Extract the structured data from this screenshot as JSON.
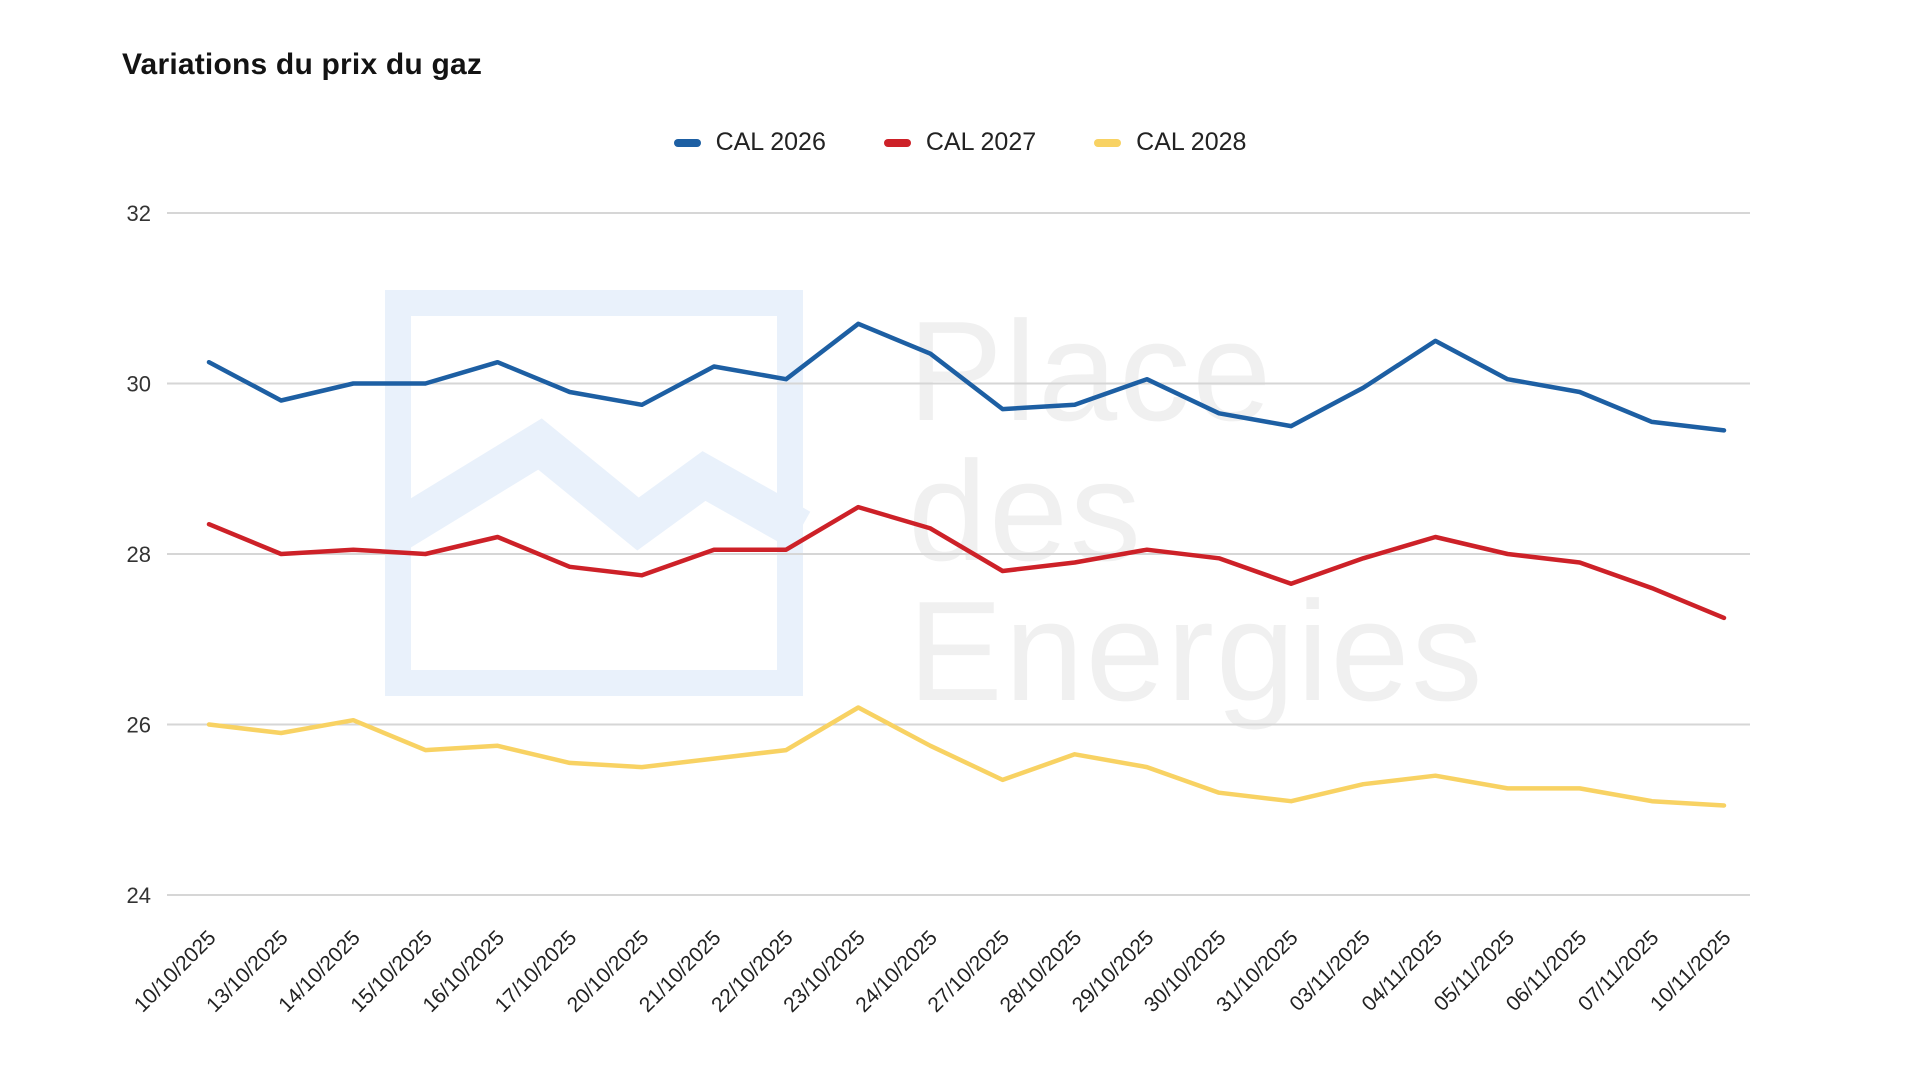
{
  "title": "Variations du prix du gaz",
  "colors": {
    "grid": "#d6d6d6",
    "axis_text": "#333333",
    "watermark_blue": "#e9f1fb",
    "watermark_gray": "#f0f0f0",
    "background": "#ffffff"
  },
  "watermark": {
    "lines": [
      "Place",
      "des",
      "Energies"
    ],
    "logo": "zigzag-line-in-square-icon"
  },
  "chart_data": {
    "type": "line",
    "title": "Variations du prix du gaz",
    "xlabel": "",
    "ylabel": "",
    "ylim": [
      24,
      32
    ],
    "yticks": [
      32,
      30,
      28,
      26,
      24
    ],
    "grid": true,
    "legend_position": "top",
    "x": [
      "10/10/2025",
      "13/10/2025",
      "14/10/2025",
      "15/10/2025",
      "16/10/2025",
      "17/10/2025",
      "20/10/2025",
      "21/10/2025",
      "22/10/2025",
      "23/10/2025",
      "24/10/2025",
      "27/10/2025",
      "28/10/2025",
      "29/10/2025",
      "30/10/2025",
      "31/10/2025",
      "03/11/2025",
      "04/11/2025",
      "05/11/2025",
      "06/11/2025",
      "07/11/2025",
      "10/11/2025"
    ],
    "series": [
      {
        "name": "CAL 2026",
        "color": "#1d5fa3",
        "values": [
          30.25,
          29.8,
          30.0,
          30.0,
          30.25,
          29.9,
          29.75,
          30.2,
          30.05,
          30.7,
          30.35,
          29.7,
          29.75,
          30.05,
          29.65,
          29.5,
          29.95,
          30.5,
          30.05,
          29.9,
          29.55,
          29.45
        ]
      },
      {
        "name": "CAL 2027",
        "color": "#cd2128",
        "values": [
          28.35,
          28.0,
          28.05,
          28.0,
          28.2,
          27.85,
          27.75,
          28.05,
          28.05,
          28.55,
          28.3,
          27.8,
          27.9,
          28.05,
          27.95,
          27.65,
          27.95,
          28.2,
          28.0,
          27.9,
          27.6,
          27.25
        ]
      },
      {
        "name": "CAL 2028",
        "color": "#f8d263",
        "values": [
          26.0,
          25.9,
          26.05,
          25.7,
          25.75,
          25.55,
          25.5,
          25.6,
          25.7,
          26.2,
          25.75,
          25.35,
          25.65,
          25.5,
          25.2,
          25.1,
          25.3,
          25.4,
          25.25,
          25.25,
          25.1,
          25.05
        ]
      }
    ]
  }
}
